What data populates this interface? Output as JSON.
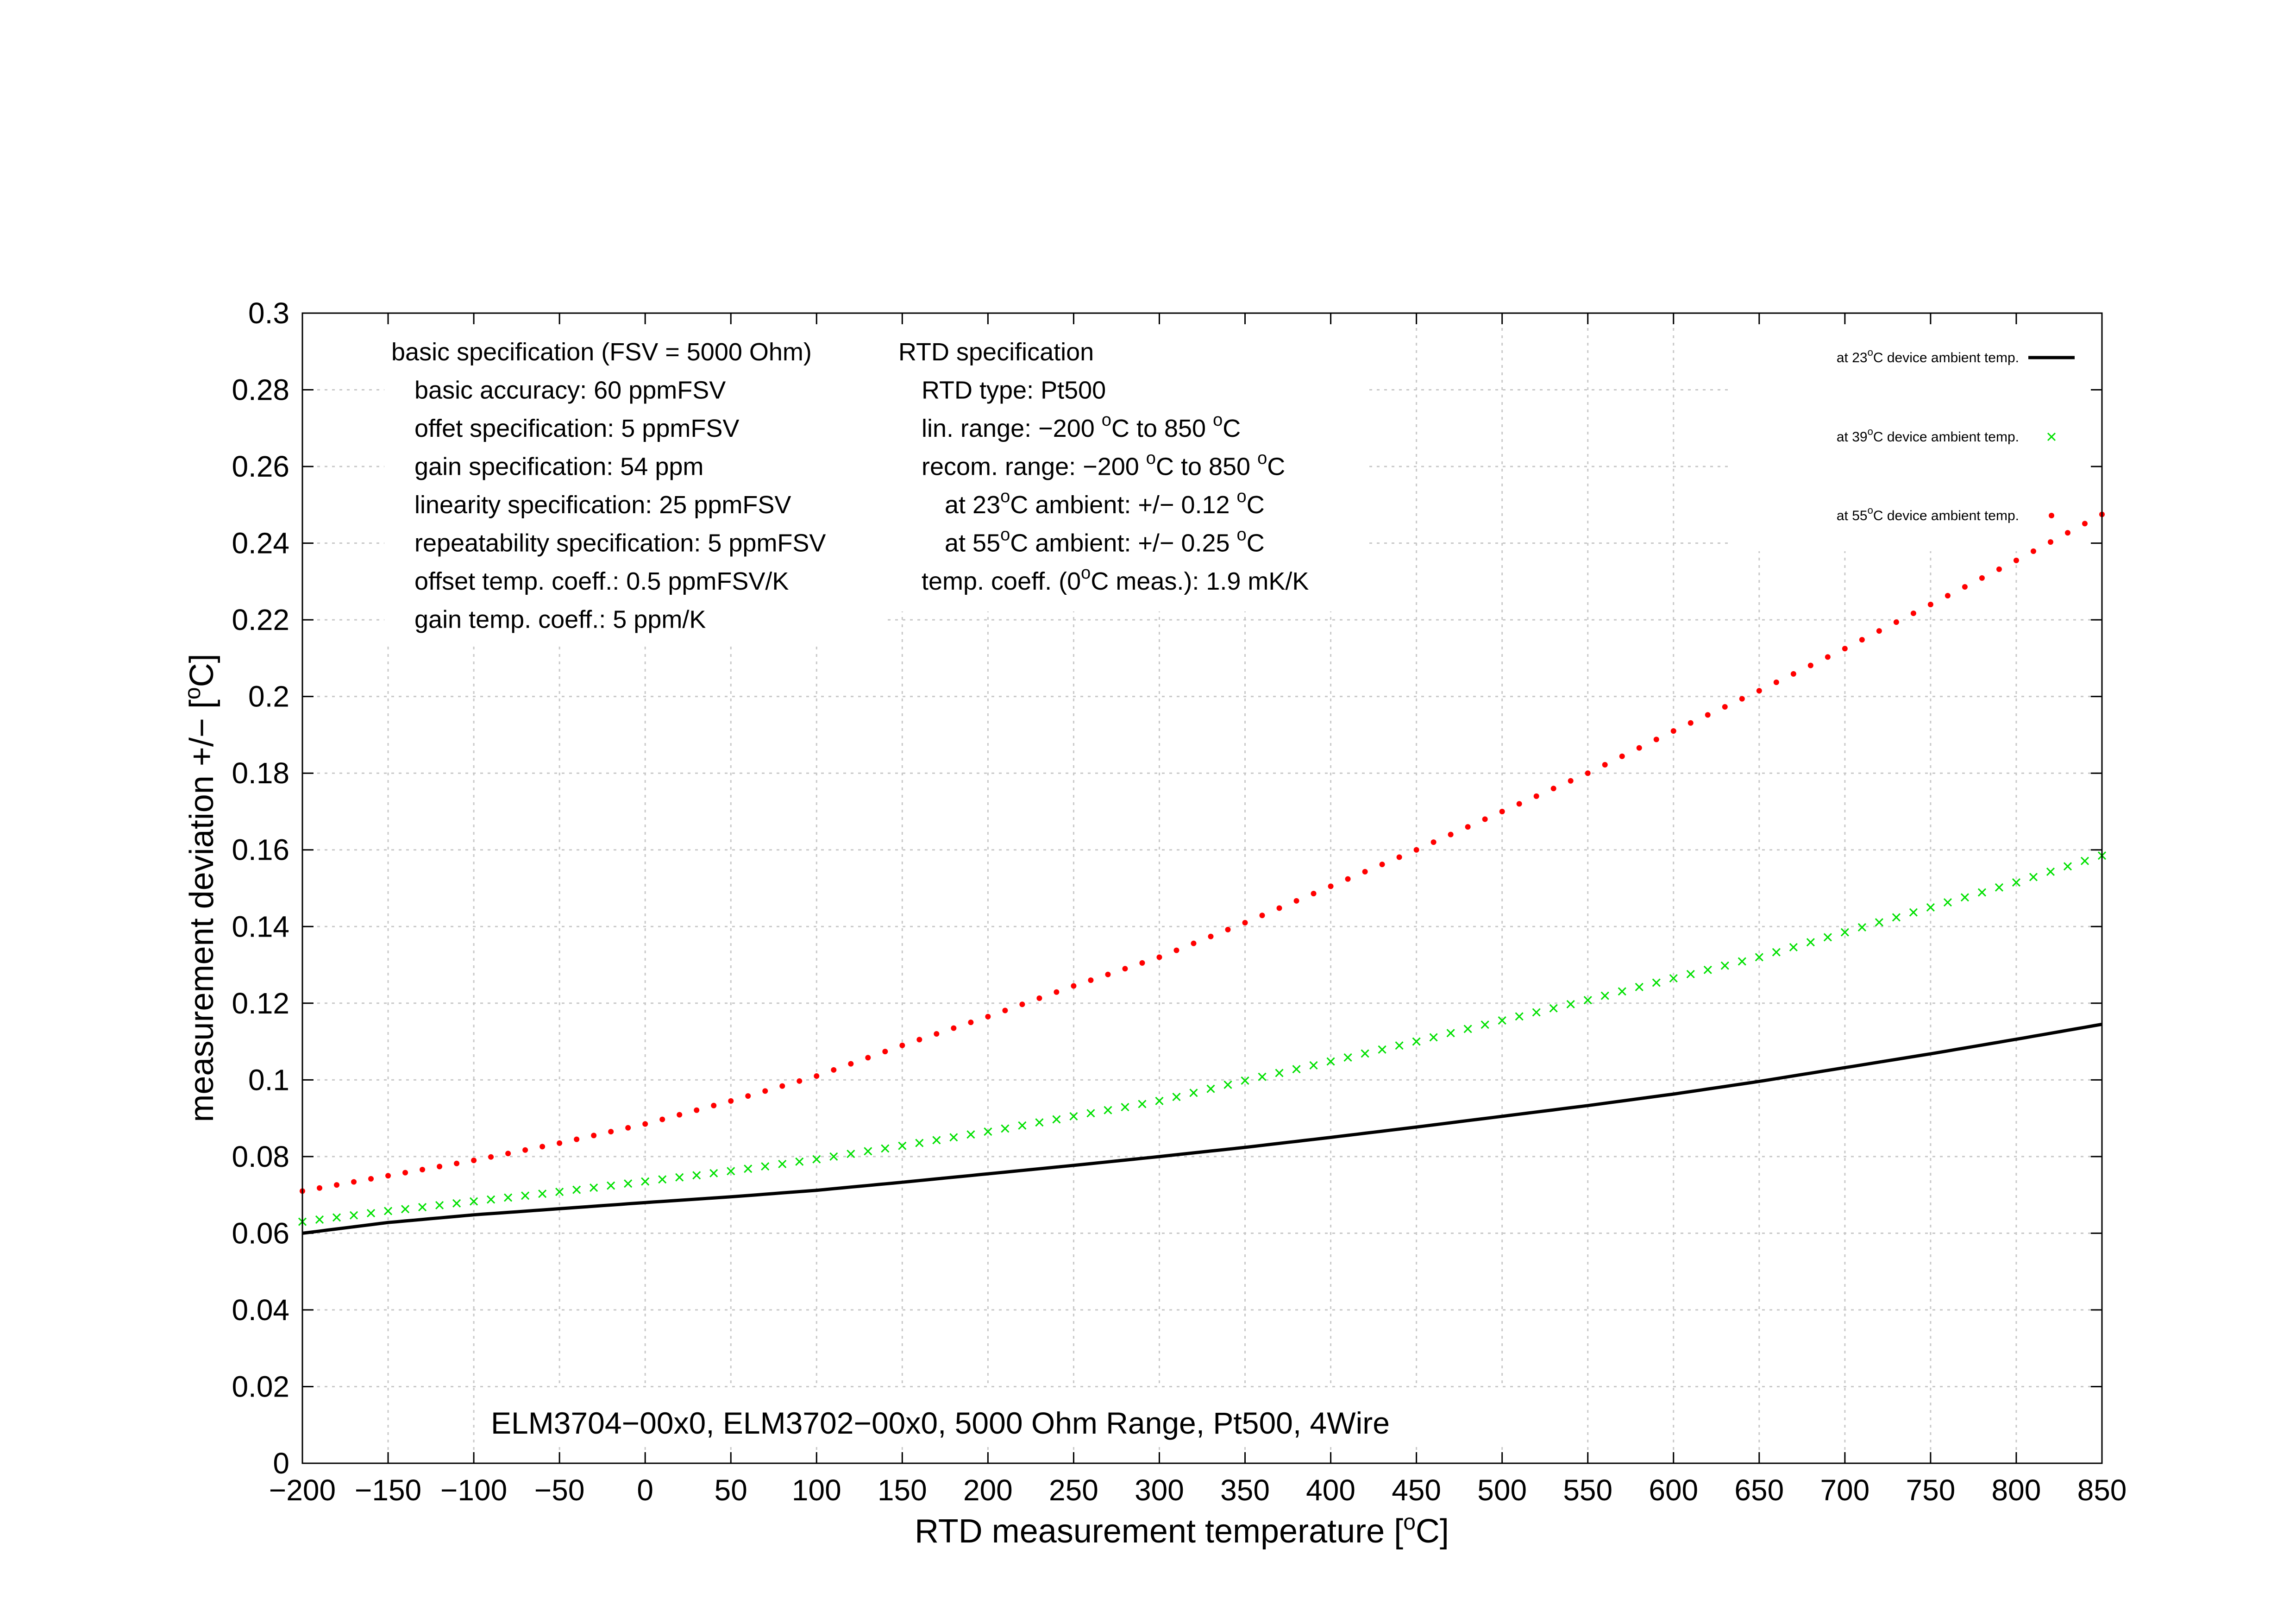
{
  "chart_data": {
    "type": "line",
    "title": "ELM3704−00x0, ELM3702−00x0, 5000 Ohm Range, Pt500, 4Wire",
    "xlabel": "RTD measurement temperature [",
    "xlabel_unit": "C]",
    "ylabel": "measurement deviation +/− [",
    "ylabel_unit": "C]",
    "degree_sup": "o",
    "xlim": [
      -200,
      850
    ],
    "ylim": [
      0,
      0.3
    ],
    "grid": true,
    "legend_position": "top-right",
    "x_ticks": [
      {
        "value": -200,
        "label": "−200"
      },
      {
        "value": -150,
        "label": "−150"
      },
      {
        "value": -100,
        "label": "−100"
      },
      {
        "value": -50,
        "label": "−50"
      },
      {
        "value": 0,
        "label": "0"
      },
      {
        "value": 50,
        "label": "50"
      },
      {
        "value": 100,
        "label": "100"
      },
      {
        "value": 150,
        "label": "150"
      },
      {
        "value": 200,
        "label": "200"
      },
      {
        "value": 250,
        "label": "250"
      },
      {
        "value": 300,
        "label": "300"
      },
      {
        "value": 350,
        "label": "350"
      },
      {
        "value": 400,
        "label": "400"
      },
      {
        "value": 450,
        "label": "450"
      },
      {
        "value": 500,
        "label": "500"
      },
      {
        "value": 550,
        "label": "550"
      },
      {
        "value": 600,
        "label": "600"
      },
      {
        "value": 650,
        "label": "650"
      },
      {
        "value": 700,
        "label": "700"
      },
      {
        "value": 750,
        "label": "750"
      },
      {
        "value": 800,
        "label": "800"
      },
      {
        "value": 850,
        "label": "850"
      }
    ],
    "y_ticks": [
      {
        "value": 0,
        "label": "0"
      },
      {
        "value": 0.02,
        "label": "0.02"
      },
      {
        "value": 0.04,
        "label": "0.04"
      },
      {
        "value": 0.06,
        "label": "0.06"
      },
      {
        "value": 0.08,
        "label": "0.08"
      },
      {
        "value": 0.1,
        "label": "0.1"
      },
      {
        "value": 0.12,
        "label": "0.12"
      },
      {
        "value": 0.14,
        "label": "0.14"
      },
      {
        "value": 0.16,
        "label": "0.16"
      },
      {
        "value": 0.18,
        "label": "0.18"
      },
      {
        "value": 0.2,
        "label": "0.2"
      },
      {
        "value": 0.22,
        "label": "0.22"
      },
      {
        "value": 0.24,
        "label": "0.24"
      },
      {
        "value": 0.26,
        "label": "0.26"
      },
      {
        "value": 0.28,
        "label": "0.28"
      },
      {
        "value": 0.3,
        "label": "0.3"
      }
    ],
    "series": [
      {
        "legend_pre": "at 23",
        "legend_post": "C device ambient temp.",
        "style": "line",
        "color": "#000000",
        "points": [
          [
            -200,
            0.06
          ],
          [
            -150,
            0.0628
          ],
          [
            -100,
            0.0648
          ],
          [
            -50,
            0.0664
          ],
          [
            0,
            0.068
          ],
          [
            50,
            0.0695
          ],
          [
            100,
            0.0712
          ],
          [
            150,
            0.0733
          ],
          [
            200,
            0.0755
          ],
          [
            250,
            0.0777
          ],
          [
            300,
            0.08
          ],
          [
            350,
            0.0824
          ],
          [
            400,
            0.085
          ],
          [
            450,
            0.0877
          ],
          [
            500,
            0.0905
          ],
          [
            550,
            0.0933
          ],
          [
            600,
            0.0963
          ],
          [
            650,
            0.0996
          ],
          [
            700,
            0.1032
          ],
          [
            750,
            0.1068
          ],
          [
            800,
            0.1106
          ],
          [
            850,
            0.1145
          ]
        ]
      },
      {
        "legend_pre": "at 39",
        "legend_post": "C device ambient temp.",
        "style": "cross",
        "color": "#00e000",
        "points": [
          [
            -200,
            0.063
          ],
          [
            -150,
            0.0658
          ],
          [
            -100,
            0.0683
          ],
          [
            -50,
            0.0708
          ],
          [
            0,
            0.0735
          ],
          [
            50,
            0.0762
          ],
          [
            100,
            0.0793
          ],
          [
            150,
            0.0828
          ],
          [
            200,
            0.0865
          ],
          [
            250,
            0.0905
          ],
          [
            300,
            0.0945
          ],
          [
            350,
            0.0998
          ],
          [
            400,
            0.1048
          ],
          [
            450,
            0.11
          ],
          [
            500,
            0.1155
          ],
          [
            550,
            0.1208
          ],
          [
            600,
            0.1265
          ],
          [
            650,
            0.132
          ],
          [
            700,
            0.1385
          ],
          [
            750,
            0.145
          ],
          [
            800,
            0.1515
          ],
          [
            850,
            0.1585
          ]
        ]
      },
      {
        "legend_pre": "at 55",
        "legend_post": "C device ambient temp.",
        "style": "dot",
        "color": "#ff0000",
        "points": [
          [
            -200,
            0.071
          ],
          [
            -150,
            0.075
          ],
          [
            -100,
            0.079
          ],
          [
            -50,
            0.0835
          ],
          [
            0,
            0.0885
          ],
          [
            50,
            0.0945
          ],
          [
            100,
            0.101
          ],
          [
            150,
            0.109
          ],
          [
            200,
            0.1165
          ],
          [
            250,
            0.1245
          ],
          [
            300,
            0.132
          ],
          [
            350,
            0.141
          ],
          [
            400,
            0.1505
          ],
          [
            450,
            0.16
          ],
          [
            500,
            0.17
          ],
          [
            550,
            0.18
          ],
          [
            600,
            0.191
          ],
          [
            650,
            0.2015
          ],
          [
            700,
            0.2125
          ],
          [
            750,
            0.224
          ],
          [
            800,
            0.2355
          ],
          [
            850,
            0.2475
          ]
        ]
      }
    ],
    "annotations": {
      "basic_lines": [
        {
          "pre": "basic specification (FSV = 5000 Ohm)",
          "sup": "",
          "post": "",
          "indent": 0
        },
        {
          "pre": "basic accuracy: 60 ppmFSV",
          "sup": "",
          "post": "",
          "indent": 1
        },
        {
          "pre": "offet specification: 5 ppmFSV",
          "sup": "",
          "post": "",
          "indent": 1
        },
        {
          "pre": "gain specification: 54 ppm",
          "sup": "",
          "post": "",
          "indent": 1
        },
        {
          "pre": "linearity specification: 25 ppmFSV",
          "sup": "",
          "post": "",
          "indent": 1
        },
        {
          "pre": "repeatability specification: 5 ppmFSV",
          "sup": "",
          "post": "",
          "indent": 1
        },
        {
          "pre": "offset temp. coeff.: 0.5 ppmFSV/K",
          "sup": "",
          "post": "",
          "indent": 1
        },
        {
          "pre": "gain temp. coeff.: 5 ppm/K",
          "sup": "",
          "post": "",
          "indent": 1
        }
      ],
      "rtd_lines": [
        {
          "pre": "RTD specification",
          "sup": "",
          "post": "",
          "sup2": "",
          "post2": "",
          "indent": 0
        },
        {
          "pre": "RTD type: Pt500",
          "sup": "",
          "post": "",
          "sup2": "",
          "post2": "",
          "indent": 1
        },
        {
          "pre": "lin. range: −200 ",
          "sup": "o",
          "post": "C to 850 ",
          "sup2": "o",
          "post2": "C",
          "indent": 1
        },
        {
          "pre": "recom. range: −200 ",
          "sup": "o",
          "post": "C to 850 ",
          "sup2": "o",
          "post2": "C",
          "indent": 1
        },
        {
          "pre": "at 23",
          "sup": "o",
          "post": "C ambient: +/− 0.12 ",
          "sup2": "o",
          "post2": "C",
          "indent": 2
        },
        {
          "pre": "at 55",
          "sup": "o",
          "post": "C ambient: +/− 0.25 ",
          "sup2": "o",
          "post2": "C",
          "indent": 2
        },
        {
          "pre": "temp. coeff. (0",
          "sup": "o",
          "post": "C meas.): 1.9 mK/K",
          "sup2": "",
          "post2": "",
          "indent": 1
        }
      ]
    }
  }
}
